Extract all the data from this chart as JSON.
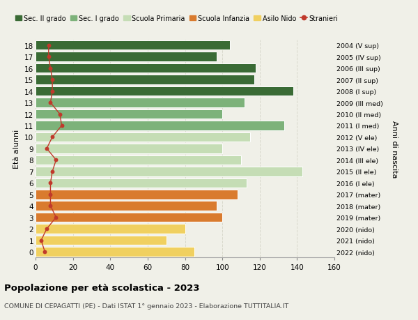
{
  "ages": [
    0,
    1,
    2,
    3,
    4,
    5,
    6,
    7,
    8,
    9,
    10,
    11,
    12,
    13,
    14,
    15,
    16,
    17,
    18
  ],
  "bar_values": [
    85,
    70,
    80,
    100,
    97,
    108,
    113,
    143,
    110,
    100,
    115,
    133,
    100,
    112,
    138,
    117,
    118,
    97,
    104
  ],
  "stranieri_values": [
    5,
    3,
    6,
    11,
    8,
    8,
    8,
    9,
    11,
    6,
    9,
    14,
    13,
    8,
    9,
    9,
    8,
    7,
    7
  ],
  "right_labels": [
    "2022 (nido)",
    "2021 (nido)",
    "2020 (nido)",
    "2019 (mater)",
    "2018 (mater)",
    "2017 (mater)",
    "2016 (I ele)",
    "2015 (II ele)",
    "2014 (III ele)",
    "2013 (IV ele)",
    "2012 (V ele)",
    "2011 (I med)",
    "2010 (II med)",
    "2009 (III med)",
    "2008 (I sup)",
    "2007 (II sup)",
    "2006 (III sup)",
    "2005 (IV sup)",
    "2004 (V sup)"
  ],
  "colors": {
    "sec2": "#3a6b35",
    "sec1": "#7db27a",
    "primaria": "#c5ddb5",
    "infanzia": "#d97b2e",
    "nido": "#f0d060"
  },
  "bar_colors": [
    "#f0d060",
    "#f0d060",
    "#f0d060",
    "#d97b2e",
    "#d97b2e",
    "#d97b2e",
    "#c5ddb5",
    "#c5ddb5",
    "#c5ddb5",
    "#c5ddb5",
    "#c5ddb5",
    "#7db27a",
    "#7db27a",
    "#7db27a",
    "#3a6b35",
    "#3a6b35",
    "#3a6b35",
    "#3a6b35",
    "#3a6b35"
  ],
  "stranieri_color": "#c0392b",
  "background_color": "#f0f0e8",
  "grid_color": "#d8d8cc",
  "ylabel": "Età alunni",
  "right_ylabel": "Anni di nascita",
  "title": "Popolazione per età scolastica - 2023",
  "subtitle": "COMUNE DI CEPAGATTI (PE) - Dati ISTAT 1° gennaio 2023 - Elaborazione TUTTITALIA.IT",
  "xlim": [
    0,
    160
  ],
  "xticks": [
    0,
    20,
    40,
    60,
    80,
    100,
    120,
    140,
    160
  ],
  "legend_labels": [
    "Sec. II grado",
    "Sec. I grado",
    "Scuola Primaria",
    "Scuola Infanzia",
    "Asilo Nido",
    "Stranieri"
  ]
}
